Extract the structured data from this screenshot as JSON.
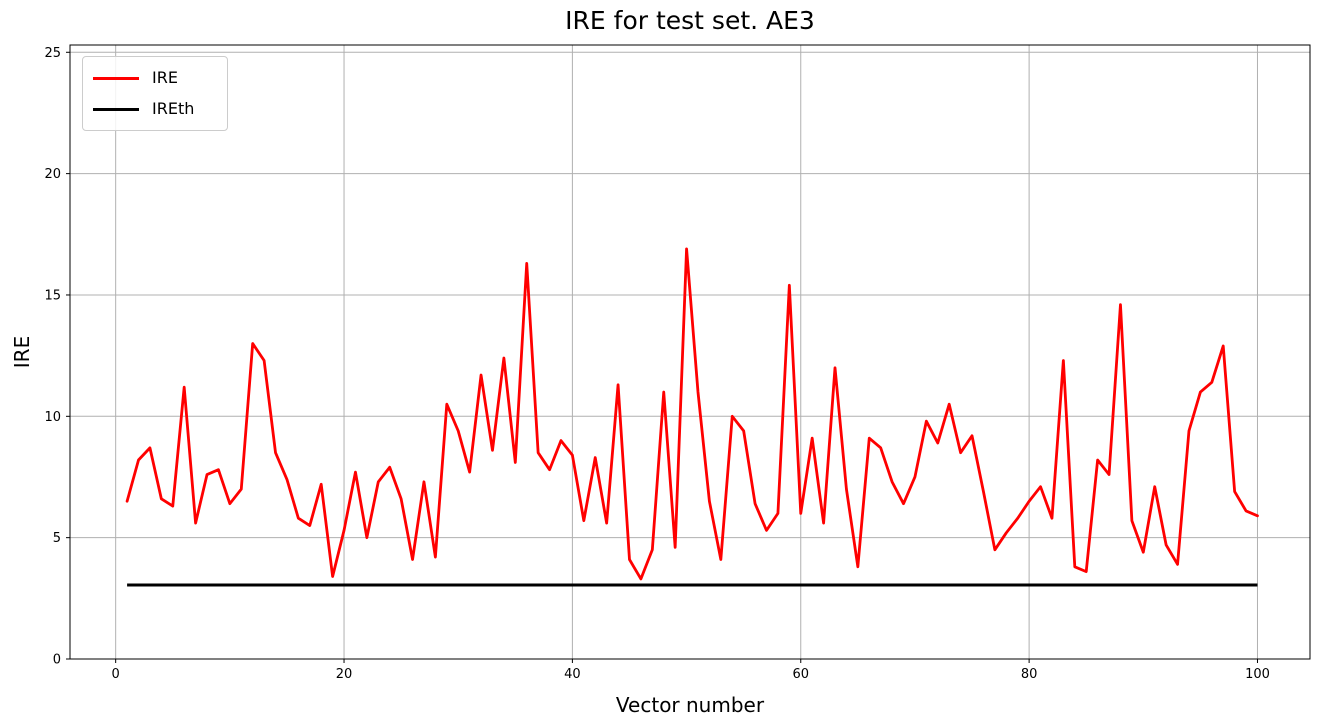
{
  "figure": {
    "title": "IRE for test set. AE3",
    "xlabel": "Vector number",
    "ylabel": "IRE"
  },
  "legend": {
    "position": "upper left",
    "items": [
      {
        "label": "IRE",
        "color": "#ff0000"
      },
      {
        "label": "IREth",
        "color": "#000000"
      }
    ]
  },
  "colors": {
    "background": "#ffffff",
    "grid": "#b0b0b0",
    "spine": "#000000",
    "tick_text": "#000000",
    "ire_line": "#ff0000",
    "ireth_line": "#000000"
  },
  "chart_data": {
    "type": "line",
    "title": "IRE for test set. AE3",
    "xlabel": "Vector number",
    "ylabel": "IRE",
    "xlim": [
      -4,
      104.6
    ],
    "ylim": [
      0,
      25.3
    ],
    "xticks": [
      0,
      20,
      40,
      60,
      80,
      100
    ],
    "yticks": [
      0,
      5,
      10,
      15,
      20,
      25
    ],
    "grid": true,
    "legend_position": "upper left",
    "x": {
      "from": 1,
      "to": 100,
      "step": 1
    },
    "series": [
      {
        "name": "IRE",
        "color": "#ff0000",
        "linewidth": 2.8,
        "values": [
          6.5,
          8.2,
          8.7,
          6.6,
          6.3,
          11.2,
          5.6,
          7.6,
          7.8,
          6.4,
          7.0,
          13.0,
          12.3,
          8.5,
          7.4,
          5.8,
          5.5,
          7.2,
          3.4,
          5.3,
          7.7,
          5.0,
          7.3,
          7.9,
          6.6,
          4.1,
          7.3,
          4.2,
          10.5,
          9.4,
          7.7,
          11.7,
          8.6,
          12.4,
          8.1,
          16.3,
          8.5,
          7.8,
          9.0,
          8.4,
          5.7,
          8.3,
          5.6,
          11.3,
          4.1,
          3.3,
          4.5,
          11.0,
          4.6,
          16.9,
          11.0,
          6.5,
          4.1,
          10.0,
          9.4,
          6.4,
          5.3,
          6.0,
          15.4,
          6.0,
          9.1,
          5.6,
          12.0,
          7.0,
          3.8,
          9.1,
          8.7,
          7.3,
          6.4,
          7.5,
          9.8,
          8.9,
          10.5,
          8.5,
          9.2,
          6.9,
          4.5,
          5.2,
          5.8,
          6.5,
          7.1,
          5.8,
          12.3,
          3.8,
          3.6,
          8.2,
          7.6,
          14.6,
          5.7,
          4.4,
          7.1,
          4.7,
          3.9,
          9.4,
          11.0,
          11.4,
          12.9,
          6.9,
          6.1,
          5.9
        ]
      },
      {
        "name": "IREth",
        "color": "#000000",
        "linewidth": 3,
        "constant_value": 3.05,
        "x_range": [
          1,
          100
        ]
      }
    ]
  }
}
